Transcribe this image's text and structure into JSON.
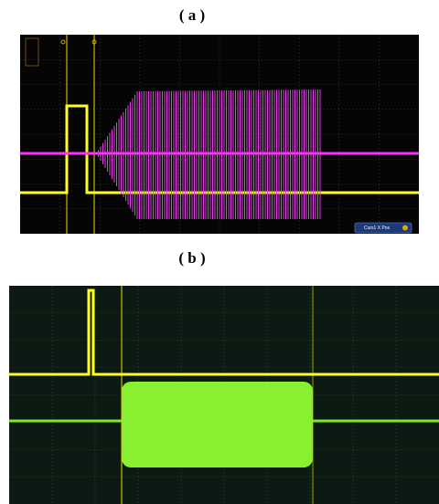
{
  "panels": [
    {
      "label": "( a )",
      "cursor_label": "Curs1 X Pos"
    },
    {
      "label": "( b )"
    }
  ]
}
